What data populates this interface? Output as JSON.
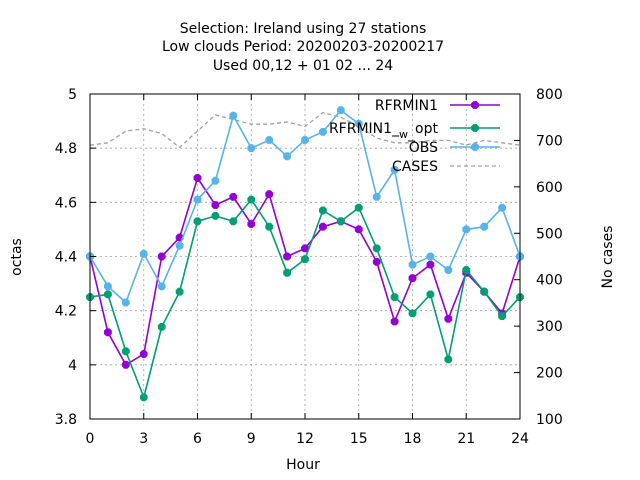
{
  "chart_data": {
    "type": "line",
    "title_lines": [
      "Selection: Ireland using    27 stations",
      "Low clouds   Period: 20200203-20200217",
      "Used  00,12  + 01 02 ... 24"
    ],
    "xlabel": "Hour",
    "ylabel": "octas",
    "y2label": "No cases",
    "xlim": [
      0,
      24
    ],
    "ylim": [
      3.8,
      5.0
    ],
    "y2lim": [
      100,
      800
    ],
    "x_ticks": [
      0,
      3,
      6,
      9,
      12,
      15,
      18,
      21,
      24
    ],
    "y_ticks": [
      3.8,
      4,
      4.2,
      4.4,
      4.6,
      4.8,
      5
    ],
    "y_tick_labels": [
      "3.8",
      "4",
      "4.2",
      "4.4",
      "4.6",
      "4.8",
      "5"
    ],
    "y2_ticks": [
      100,
      200,
      300,
      400,
      500,
      600,
      700,
      800
    ],
    "grid": true,
    "legend_position": "top-right",
    "x": [
      0,
      1,
      2,
      3,
      4,
      5,
      6,
      7,
      8,
      9,
      10,
      11,
      12,
      13,
      14,
      15,
      16,
      17,
      18,
      19,
      20,
      21,
      22,
      23,
      24
    ],
    "series": [
      {
        "name": "RFRMIN1",
        "color": "#9400d3",
        "axis": "y",
        "style": "linespoints",
        "values": [
          4.4,
          4.12,
          4.0,
          4.04,
          4.4,
          4.47,
          4.69,
          4.59,
          4.62,
          4.52,
          4.63,
          4.4,
          4.43,
          4.51,
          4.53,
          4.5,
          4.38,
          4.16,
          4.32,
          4.37,
          4.17,
          4.34,
          4.27,
          4.19,
          4.4
        ]
      },
      {
        "name": "RFRMIN1_w_opt",
        "legend_main": "RFRMIN1",
        "legend_sub": "w",
        "legend_tail": "opt",
        "color": "#009e73",
        "axis": "y",
        "style": "linespoints",
        "values": [
          4.25,
          4.26,
          4.05,
          3.88,
          4.14,
          4.27,
          4.53,
          4.55,
          4.53,
          4.61,
          4.51,
          4.34,
          4.39,
          4.57,
          4.53,
          4.58,
          4.43,
          4.25,
          4.19,
          4.26,
          4.02,
          4.35,
          4.27,
          4.18,
          4.25
        ]
      },
      {
        "name": "OBS",
        "color": "#56b4e9",
        "axis": "y",
        "style": "linespoints",
        "values": [
          4.4,
          4.29,
          4.23,
          4.41,
          4.29,
          4.44,
          4.61,
          4.68,
          4.92,
          4.8,
          4.83,
          4.77,
          4.83,
          4.86,
          4.94,
          4.89,
          4.62,
          4.72,
          4.37,
          4.4,
          4.35,
          4.5,
          4.51,
          4.58,
          4.4
        ]
      },
      {
        "name": "CASES",
        "color": "#a0a0a0",
        "axis": "y2",
        "style": "dashed",
        "values": [
          690,
          695,
          720,
          725,
          715,
          685,
          720,
          755,
          745,
          735,
          735,
          740,
          730,
          760,
          750,
          730,
          705,
          695,
          695,
          700,
          700,
          690,
          700,
          695,
          690
        ]
      }
    ]
  }
}
